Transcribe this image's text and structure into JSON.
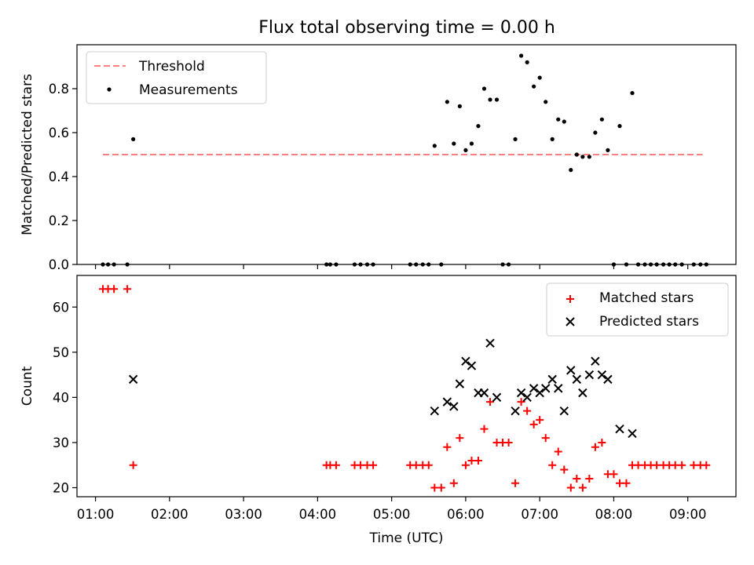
{
  "title": "Flux total observing time = 0.00 h",
  "chart_data": [
    {
      "type": "scatter",
      "panel": "top",
      "ylabel": "Matched/Predicted stars",
      "xlim": [
        0.75,
        9.65
      ],
      "ylim": [
        0.0,
        1.0
      ],
      "yticks": [
        0.0,
        0.2,
        0.4,
        0.6,
        0.8
      ],
      "yticklabels": [
        "0.0",
        "0.2",
        "0.4",
        "0.6",
        "0.8"
      ],
      "legend_position": "top-left",
      "threshold": {
        "name": "Threshold",
        "value": 0.5,
        "x_range": [
          1.1,
          9.2
        ],
        "color": "#ff7f7f"
      },
      "series": [
        {
          "name": "Measurements",
          "color": "#000000",
          "points": [
            [
              1.1,
              0
            ],
            [
              1.17,
              0
            ],
            [
              1.25,
              0
            ],
            [
              1.43,
              0
            ],
            [
              1.51,
              0.57
            ],
            [
              4.12,
              0
            ],
            [
              4.17,
              0
            ],
            [
              4.25,
              0
            ],
            [
              4.5,
              0
            ],
            [
              4.58,
              0
            ],
            [
              4.67,
              0
            ],
            [
              4.75,
              0
            ],
            [
              5.25,
              0
            ],
            [
              5.33,
              0
            ],
            [
              5.42,
              0
            ],
            [
              5.5,
              0
            ],
            [
              5.58,
              0.54
            ],
            [
              5.67,
              0
            ],
            [
              5.75,
              0.74
            ],
            [
              5.84,
              0.55
            ],
            [
              5.92,
              0.72
            ],
            [
              6.0,
              0.52
            ],
            [
              6.08,
              0.55
            ],
            [
              6.17,
              0.63
            ],
            [
              6.25,
              0.8
            ],
            [
              6.33,
              0.75
            ],
            [
              6.42,
              0.75
            ],
            [
              6.5,
              0
            ],
            [
              6.58,
              0
            ],
            [
              6.67,
              0.57
            ],
            [
              6.75,
              0.95
            ],
            [
              6.83,
              0.92
            ],
            [
              6.92,
              0.81
            ],
            [
              7.0,
              0.85
            ],
            [
              7.08,
              0.74
            ],
            [
              7.17,
              0.57
            ],
            [
              7.25,
              0.66
            ],
            [
              7.33,
              0.65
            ],
            [
              7.42,
              0.43
            ],
            [
              7.5,
              0.5
            ],
            [
              7.58,
              0.49
            ],
            [
              7.67,
              0.49
            ],
            [
              7.75,
              0.6
            ],
            [
              7.84,
              0.66
            ],
            [
              7.92,
              0.52
            ],
            [
              8.0,
              0
            ],
            [
              8.08,
              0.63
            ],
            [
              8.17,
              0
            ],
            [
              8.25,
              0.78
            ],
            [
              8.33,
              0
            ],
            [
              8.42,
              0
            ],
            [
              8.5,
              0
            ],
            [
              8.58,
              0
            ],
            [
              8.67,
              0
            ],
            [
              8.75,
              0
            ],
            [
              8.83,
              0
            ],
            [
              8.92,
              0
            ],
            [
              9.08,
              0
            ],
            [
              9.17,
              0
            ],
            [
              9.25,
              0
            ]
          ]
        }
      ]
    },
    {
      "type": "scatter",
      "panel": "bottom",
      "xlabel": "Time (UTC)",
      "ylabel": "Count",
      "xlim": [
        0.75,
        9.65
      ],
      "ylim": [
        18,
        67
      ],
      "yticks": [
        20,
        30,
        40,
        50,
        60
      ],
      "yticklabels": [
        "20",
        "30",
        "40",
        "50",
        "60"
      ],
      "xticks": [
        1,
        2,
        3,
        4,
        5,
        6,
        7,
        8,
        9
      ],
      "xticklabels": [
        "01:00",
        "02:00",
        "03:00",
        "04:00",
        "05:00",
        "06:00",
        "07:00",
        "08:00",
        "09:00"
      ],
      "legend_position": "top-right",
      "series": [
        {
          "name": "Matched stars",
          "marker": "plus",
          "color": "#ff0000",
          "points": [
            [
              1.1,
              64
            ],
            [
              1.17,
              64
            ],
            [
              1.25,
              64
            ],
            [
              1.43,
              64
            ],
            [
              1.51,
              25
            ],
            [
              4.12,
              25
            ],
            [
              4.17,
              25
            ],
            [
              4.25,
              25
            ],
            [
              4.5,
              25
            ],
            [
              4.58,
              25
            ],
            [
              4.67,
              25
            ],
            [
              4.75,
              25
            ],
            [
              5.25,
              25
            ],
            [
              5.33,
              25
            ],
            [
              5.42,
              25
            ],
            [
              5.5,
              25
            ],
            [
              5.58,
              20
            ],
            [
              5.67,
              20
            ],
            [
              5.75,
              29
            ],
            [
              5.84,
              21
            ],
            [
              5.92,
              31
            ],
            [
              6.0,
              25
            ],
            [
              6.08,
              26
            ],
            [
              6.17,
              26
            ],
            [
              6.25,
              33
            ],
            [
              6.33,
              39
            ],
            [
              6.42,
              30
            ],
            [
              6.5,
              30
            ],
            [
              6.58,
              30
            ],
            [
              6.67,
              21
            ],
            [
              6.75,
              39
            ],
            [
              6.83,
              37
            ],
            [
              6.92,
              34
            ],
            [
              7.0,
              35
            ],
            [
              7.08,
              31
            ],
            [
              7.17,
              25
            ],
            [
              7.25,
              28
            ],
            [
              7.33,
              24
            ],
            [
              7.42,
              20
            ],
            [
              7.5,
              22
            ],
            [
              7.58,
              20
            ],
            [
              7.67,
              22
            ],
            [
              7.75,
              29
            ],
            [
              7.84,
              30
            ],
            [
              7.92,
              23
            ],
            [
              8.0,
              23
            ],
            [
              8.08,
              21
            ],
            [
              8.17,
              21
            ],
            [
              8.25,
              25
            ],
            [
              8.33,
              25
            ],
            [
              8.42,
              25
            ],
            [
              8.5,
              25
            ],
            [
              8.58,
              25
            ],
            [
              8.67,
              25
            ],
            [
              8.75,
              25
            ],
            [
              8.83,
              25
            ],
            [
              8.92,
              25
            ],
            [
              9.08,
              25
            ],
            [
              9.17,
              25
            ],
            [
              9.25,
              25
            ]
          ]
        },
        {
          "name": "Predicted stars",
          "marker": "x",
          "color": "#000000",
          "points": [
            [
              1.51,
              44
            ],
            [
              5.58,
              37
            ],
            [
              5.75,
              39
            ],
            [
              5.84,
              38
            ],
            [
              5.92,
              43
            ],
            [
              6.0,
              48
            ],
            [
              6.08,
              47
            ],
            [
              6.17,
              41
            ],
            [
              6.25,
              41
            ],
            [
              6.33,
              52
            ],
            [
              6.42,
              40
            ],
            [
              6.67,
              37
            ],
            [
              6.75,
              41
            ],
            [
              6.83,
              40
            ],
            [
              6.92,
              42
            ],
            [
              7.0,
              41
            ],
            [
              7.08,
              42
            ],
            [
              7.17,
              44
            ],
            [
              7.25,
              42
            ],
            [
              7.33,
              37
            ],
            [
              7.42,
              46
            ],
            [
              7.5,
              44
            ],
            [
              7.58,
              41
            ],
            [
              7.67,
              45
            ],
            [
              7.75,
              48
            ],
            [
              7.84,
              45
            ],
            [
              7.92,
              44
            ],
            [
              8.08,
              33
            ],
            [
              8.25,
              32
            ]
          ]
        }
      ]
    }
  ]
}
